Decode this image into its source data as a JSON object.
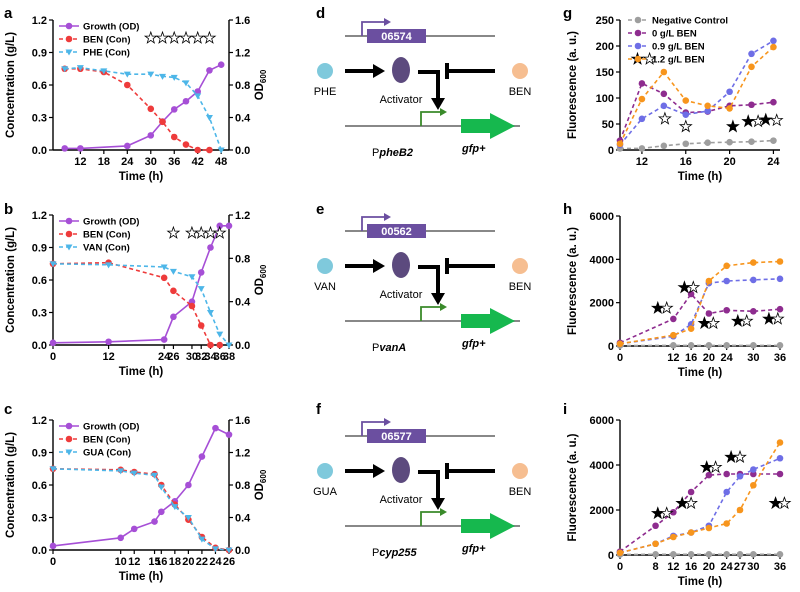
{
  "colors": {
    "growth": "#a64fd6",
    "ben": "#ee3b3b",
    "phe": "#4db6e8",
    "neg": "#9e9e9e",
    "c0": "#8e2c8f",
    "c09": "#6e6ee6",
    "c12": "#f7951d",
    "gfp": "#16b84e",
    "activator": "#5c4a7e",
    "promoter": "#6b4fa0",
    "substrate": "#7fc9dc",
    "ben_circle": "#f6be91"
  },
  "chart_data": [
    {
      "panel": "a",
      "type": "line",
      "xlabel": "Time (h)",
      "ylabel": "Concentration (g/L)",
      "y2label": "OD",
      "y2label_sub": "600",
      "xlim": [
        5,
        50
      ],
      "xticks": [
        12,
        18,
        24,
        30,
        36,
        42,
        48
      ],
      "ylim": [
        0,
        1.2
      ],
      "yticks": [
        "0.0",
        "0.3",
        "0.6",
        "0.9",
        "1.2"
      ],
      "y2lim": [
        0,
        1.6
      ],
      "y2ticks": [
        "0.0",
        "0.4",
        "0.8",
        "1.2",
        "1.6"
      ],
      "legend": [
        "Growth (OD)",
        "BEN (Con)",
        "PHE (Con)"
      ],
      "series": [
        {
          "name": "Growth (OD)",
          "axis": "right",
          "x": [
            8,
            12,
            24,
            30,
            33,
            36,
            39,
            42,
            45,
            48
          ],
          "y": [
            0.02,
            0.02,
            0.05,
            0.18,
            0.35,
            0.5,
            0.6,
            0.72,
            0.98,
            1.05
          ]
        },
        {
          "name": "BEN (Con)",
          "axis": "left",
          "x": [
            8,
            12,
            18,
            24,
            30,
            33,
            36,
            39,
            42,
            45
          ],
          "y": [
            0.75,
            0.75,
            0.72,
            0.6,
            0.38,
            0.26,
            0.12,
            0.05,
            0.0,
            0.0
          ]
        },
        {
          "name": "PHE (Con)",
          "axis": "left",
          "x": [
            8,
            12,
            18,
            24,
            30,
            33,
            36,
            39,
            42,
            45,
            48
          ],
          "y": [
            0.75,
            0.76,
            0.73,
            0.7,
            0.7,
            0.68,
            0.67,
            0.62,
            0.5,
            0.3,
            0.0
          ]
        }
      ],
      "stars": [
        [
          30,
          "o"
        ],
        [
          33,
          "o"
        ],
        [
          36,
          "o"
        ],
        [
          39,
          "o"
        ],
        [
          42,
          "o"
        ],
        [
          45,
          "o"
        ]
      ]
    },
    {
      "panel": "b",
      "type": "line",
      "xlabel": "Time (h)",
      "ylabel": "Concentration (g/L)",
      "y2label": "OD",
      "y2label_sub": "600",
      "xlim": [
        0,
        38
      ],
      "xticks": [
        0,
        12,
        24,
        26,
        30,
        32,
        34,
        36,
        38
      ],
      "ylim": [
        0,
        1.2
      ],
      "yticks": [
        "0.0",
        "0.3",
        "0.6",
        "0.9",
        "1.2"
      ],
      "y2lim": [
        0,
        1.2
      ],
      "y2ticks": [
        "0.0",
        "0.4",
        "0.8",
        "1.2"
      ],
      "legend": [
        "Growth (OD)",
        "BEN (Con)",
        "VAN (Con)"
      ],
      "series": [
        {
          "name": "Growth (OD)",
          "axis": "right",
          "x": [
            0,
            12,
            24,
            26,
            30,
            32,
            34,
            36,
            38
          ],
          "y": [
            0.02,
            0.03,
            0.05,
            0.26,
            0.4,
            0.67,
            0.9,
            1.1,
            1.1
          ]
        },
        {
          "name": "BEN (Con)",
          "axis": "left",
          "x": [
            0,
            12,
            24,
            26,
            30,
            32,
            34,
            36
          ],
          "y": [
            0.75,
            0.76,
            0.62,
            0.5,
            0.36,
            0.18,
            0.0,
            0.0
          ]
        },
        {
          "name": "VAN (Con)",
          "axis": "left",
          "x": [
            0,
            12,
            24,
            26,
            30,
            32,
            34,
            36,
            38
          ],
          "y": [
            0.75,
            0.74,
            0.72,
            0.68,
            0.63,
            0.52,
            0.3,
            0.1,
            0.0
          ]
        }
      ],
      "stars": [
        [
          26,
          "o"
        ],
        [
          30,
          "o"
        ],
        [
          32,
          "o"
        ],
        [
          34,
          "o"
        ],
        [
          36,
          "o"
        ]
      ]
    },
    {
      "panel": "c",
      "type": "line",
      "xlabel": "Time (h)",
      "ylabel": "Concentration (g/L)",
      "y2label": "OD",
      "y2label_sub": "600",
      "xlim": [
        0,
        26
      ],
      "xticks": [
        0,
        10,
        12,
        15,
        16,
        18,
        20,
        22,
        24,
        26
      ],
      "ylim": [
        0,
        1.2
      ],
      "yticks": [
        "0.0",
        "0.3",
        "0.6",
        "0.9",
        "1.2"
      ],
      "y2lim": [
        0,
        1.6
      ],
      "y2ticks": [
        "0.0",
        "0.4",
        "0.8",
        "1.2",
        "1.6"
      ],
      "legend": [
        "Growth (OD)",
        "BEN (Con)",
        "GUA (Con)"
      ],
      "series": [
        {
          "name": "Growth (OD)",
          "axis": "right",
          "x": [
            0,
            10,
            12,
            15,
            16,
            18,
            20,
            22,
            24,
            26
          ],
          "y": [
            0.05,
            0.15,
            0.26,
            0.35,
            0.47,
            0.6,
            0.8,
            1.15,
            1.5,
            1.42
          ]
        },
        {
          "name": "BEN (Con)",
          "axis": "left",
          "x": [
            0,
            10,
            12,
            15,
            16,
            18,
            20,
            22,
            24,
            26
          ],
          "y": [
            0.75,
            0.74,
            0.72,
            0.7,
            0.6,
            0.42,
            0.28,
            0.12,
            0.02,
            0.0
          ]
        },
        {
          "name": "GUA (Con)",
          "axis": "left",
          "x": [
            0,
            10,
            12,
            15,
            16,
            18,
            20,
            22,
            24,
            26
          ],
          "y": [
            0.75,
            0.73,
            0.71,
            0.69,
            0.58,
            0.4,
            0.3,
            0.1,
            0.01,
            0.0
          ]
        }
      ],
      "stars": []
    },
    {
      "panel": "g",
      "type": "line",
      "xlabel": "Time (h)",
      "ylabel": "Fluorescence (a. u.)",
      "xlim": [
        10,
        24.6
      ],
      "xticks": [
        12,
        16,
        20,
        24
      ],
      "ylim": [
        0,
        250
      ],
      "yticks": [
        "0",
        "50",
        "100",
        "150",
        "200",
        "250"
      ],
      "legend": [
        "Negative Control",
        "0 g/L BEN",
        "0.9 g/L BEN",
        "1.2 g/L BEN"
      ],
      "series": [
        {
          "name": "Negative Control",
          "x": [
            10,
            12,
            14,
            16,
            18,
            20,
            22,
            24
          ],
          "y": [
            3,
            3,
            8,
            12,
            14,
            15,
            16,
            18
          ]
        },
        {
          "name": "0 g/L BEN",
          "x": [
            10,
            12,
            14,
            16,
            18,
            20,
            22,
            24
          ],
          "y": [
            18,
            128,
            108,
            72,
            74,
            85,
            87,
            92
          ]
        },
        {
          "name": "0.9 g/L BEN",
          "x": [
            10,
            12,
            14,
            16,
            18,
            20,
            22,
            24
          ],
          "y": [
            10,
            60,
            85,
            68,
            75,
            112,
            185,
            210
          ]
        },
        {
          "name": "1.2 g/L BEN",
          "x": [
            10,
            12,
            14,
            16,
            18,
            20,
            22,
            24
          ],
          "y": [
            12,
            98,
            150,
            95,
            85,
            80,
            160,
            198
          ]
        }
      ],
      "stars": [
        [
          11.6,
          175,
          "f"
        ],
        [
          12.7,
          175,
          "o"
        ],
        [
          14.1,
          60,
          "o"
        ],
        [
          16,
          45,
          "o"
        ],
        [
          20.3,
          45,
          "f"
        ],
        [
          21.7,
          55,
          "f"
        ],
        [
          22.6,
          55,
          "o"
        ],
        [
          23.3,
          58,
          "f"
        ],
        [
          24.3,
          57,
          "o"
        ]
      ]
    },
    {
      "panel": "h",
      "type": "line",
      "xlabel": "Time (h)",
      "ylabel": "Fluorescence (a. u.)",
      "xlim": [
        0,
        36
      ],
      "xticks": [
        0,
        12,
        16,
        20,
        24,
        30,
        36
      ],
      "ylim": [
        0,
        6000
      ],
      "yticks": [
        "0",
        "2000",
        "4000",
        "6000"
      ],
      "series": [
        {
          "name": "Negative Control",
          "x": [
            0,
            12,
            16,
            20,
            24,
            30,
            36
          ],
          "y": [
            20,
            30,
            30,
            30,
            30,
            30,
            30
          ]
        },
        {
          "name": "0 g/L BEN",
          "x": [
            0,
            12,
            16,
            20,
            24,
            30,
            36
          ],
          "y": [
            150,
            1250,
            2400,
            1500,
            1650,
            1600,
            1700
          ]
        },
        {
          "name": "0.9 g/L BEN",
          "x": [
            0,
            12,
            16,
            20,
            24,
            30,
            36
          ],
          "y": [
            100,
            450,
            1000,
            2900,
            3000,
            3050,
            3100
          ]
        },
        {
          "name": "1.2 g/L BEN",
          "x": [
            0,
            12,
            16,
            20,
            24,
            30,
            36
          ],
          "y": [
            100,
            500,
            800,
            3000,
            3700,
            3850,
            3900
          ]
        }
      ],
      "stars": [
        [
          8.5,
          1750,
          "f"
        ],
        [
          10.5,
          1750,
          "o"
        ],
        [
          14.5,
          2700,
          "f"
        ],
        [
          16.5,
          2700,
          "o"
        ],
        [
          19,
          1050,
          "f"
        ],
        [
          21,
          1050,
          "o"
        ],
        [
          26.5,
          1150,
          "f"
        ],
        [
          28.5,
          1150,
          "o"
        ],
        [
          33.5,
          1250,
          "f"
        ],
        [
          35.5,
          1250,
          "o"
        ]
      ]
    },
    {
      "panel": "i",
      "type": "line",
      "xlabel": "Time (h)",
      "ylabel": "Fluorescence (a. u.)",
      "xlim": [
        0,
        36
      ],
      "xticks": [
        0,
        8,
        12,
        16,
        20,
        24,
        27,
        30,
        36
      ],
      "ylim": [
        0,
        6000
      ],
      "yticks": [
        "0",
        "2000",
        "4000",
        "6000"
      ],
      "series": [
        {
          "name": "Negative Control",
          "x": [
            0,
            8,
            12,
            16,
            20,
            24,
            27,
            30,
            36
          ],
          "y": [
            20,
            30,
            30,
            30,
            30,
            30,
            30,
            30,
            30
          ]
        },
        {
          "name": "0 g/L BEN",
          "x": [
            0,
            8,
            12,
            16,
            20,
            24,
            27,
            30,
            36
          ],
          "y": [
            150,
            1300,
            1900,
            2800,
            3550,
            3600,
            3600,
            3600,
            3600
          ]
        },
        {
          "name": "0.9 g/L BEN",
          "x": [
            0,
            8,
            12,
            16,
            20,
            24,
            27,
            30,
            36
          ],
          "y": [
            100,
            500,
            850,
            1000,
            1300,
            2800,
            3500,
            3800,
            4300
          ]
        },
        {
          "name": "1.2 g/L BEN",
          "x": [
            0,
            8,
            12,
            16,
            20,
            24,
            27,
            30,
            36
          ],
          "y": [
            100,
            500,
            800,
            1000,
            1200,
            1400,
            2000,
            3100,
            5000
          ]
        }
      ],
      "stars": [
        [
          8.5,
          1850,
          "f"
        ],
        [
          10.5,
          1850,
          "o"
        ],
        [
          14,
          2300,
          "f"
        ],
        [
          16,
          2300,
          "o"
        ],
        [
          19.5,
          3900,
          "f"
        ],
        [
          21.5,
          3900,
          "o"
        ],
        [
          25,
          4350,
          "f"
        ],
        [
          27,
          4350,
          "o"
        ],
        [
          35,
          2300,
          "f"
        ],
        [
          37,
          2300,
          "o"
        ]
      ]
    }
  ],
  "diagrams": [
    {
      "panel": "d",
      "gene": "06574",
      "substrate": "PHE",
      "activator": "Activator",
      "inhibitor": "BEN",
      "promoter": "P",
      "promoter_name": "pheB2",
      "reporter": "gfp+"
    },
    {
      "panel": "e",
      "gene": "00562",
      "substrate": "VAN",
      "activator": "Activator",
      "inhibitor": "BEN",
      "promoter": "P",
      "promoter_name": "vanA",
      "reporter": "gfp+"
    },
    {
      "panel": "f",
      "gene": "06577",
      "substrate": "GUA",
      "activator": "Activator",
      "inhibitor": "BEN",
      "promoter": "P",
      "promoter_name": "cyp255",
      "reporter": "gfp+"
    }
  ]
}
